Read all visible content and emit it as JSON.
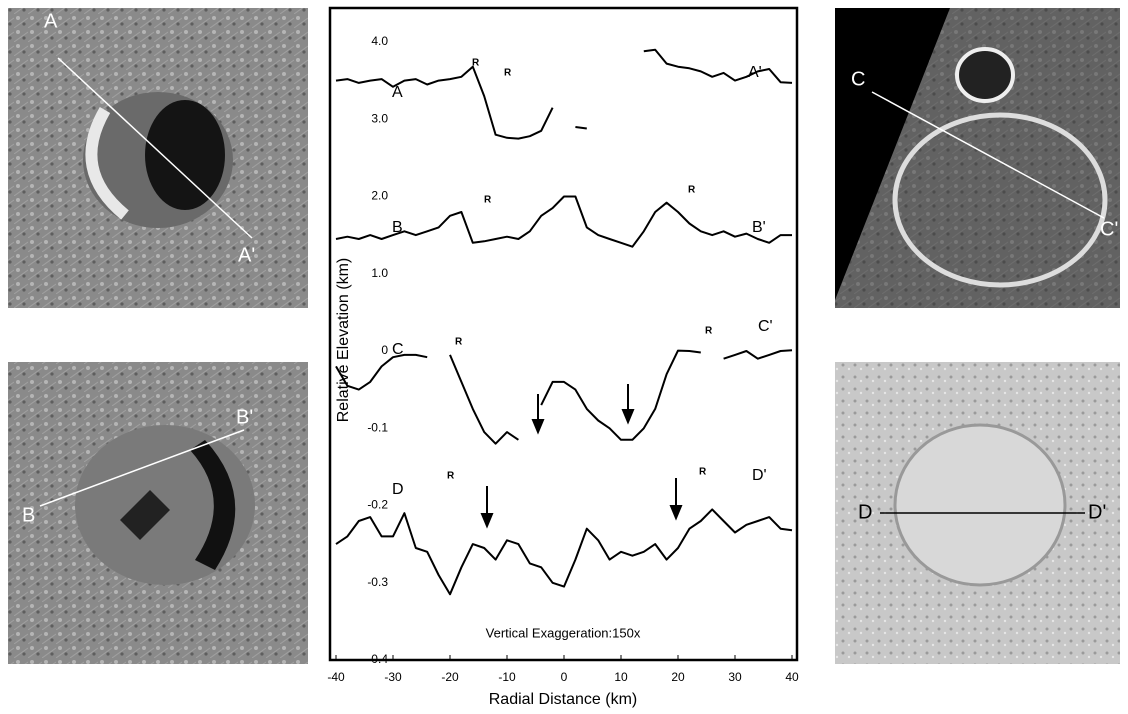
{
  "chart_data": {
    "type": "line",
    "xlabel": "Radial Distance (km)",
    "ylabel": "Relative Elevation (km)",
    "xlim": [
      -40,
      40
    ],
    "xticks": [
      -40,
      -30,
      -20,
      -10,
      0,
      10,
      20,
      30,
      40
    ],
    "ylim": [
      -0.4,
      4.44
    ],
    "yticks": [
      {
        "value": 4.0,
        "label": "4.0"
      },
      {
        "value": 3.0,
        "label": "3.0"
      },
      {
        "value": 2.0,
        "label": "2.0"
      },
      {
        "value": 1.0,
        "label": "1.0"
      },
      0,
      -0.1,
      -0.2,
      -0.3,
      -0.4
    ],
    "annotations": [
      "A",
      "A'",
      "R",
      "R",
      "B",
      "B'",
      "R",
      "R",
      "C",
      "C'",
      "R",
      "R",
      "D",
      "D'",
      "R",
      "R",
      "Vertical Exaggeration:150x"
    ],
    "x": [
      -40,
      -38,
      -36,
      -34,
      -32,
      -30,
      -28,
      -26,
      -24,
      -22,
      -20,
      -18,
      -16,
      -14,
      -12,
      -10,
      -8,
      -6,
      -4,
      -2,
      0,
      2,
      4,
      6,
      8,
      10,
      12,
      14,
      16,
      18,
      20,
      22,
      24,
      26,
      28,
      30,
      32,
      34,
      36,
      38,
      40
    ],
    "series": [
      {
        "color": "#000000",
        "values": [
          3.5,
          3.52,
          3.47,
          3.5,
          3.52,
          3.42,
          3.5,
          3.52,
          3.45,
          3.5,
          3.52,
          3.55,
          3.68,
          3.3,
          2.8,
          2.76,
          2.75,
          2.78,
          2.85,
          3.15,
          null,
          2.9,
          2.88,
          null,
          null,
          null,
          null,
          3.88,
          3.9,
          3.72,
          3.68,
          3.66,
          3.62,
          3.55,
          3.6,
          3.5,
          3.55,
          3.62,
          3.65,
          3.48,
          3.47
        ]
      },
      {
        "color": "#000000",
        "values": [
          1.45,
          1.48,
          1.45,
          1.5,
          1.45,
          1.5,
          1.55,
          1.5,
          1.55,
          1.6,
          1.75,
          1.8,
          1.4,
          1.42,
          1.45,
          1.48,
          1.45,
          1.55,
          1.75,
          1.85,
          2.0,
          2.0,
          1.6,
          1.5,
          1.45,
          1.4,
          1.35,
          1.55,
          1.8,
          1.92,
          1.8,
          1.65,
          1.55,
          1.5,
          1.55,
          1.48,
          1.52,
          1.45,
          1.4,
          1.5,
          1.5
        ]
      },
      {
        "color": "#000000",
        "values": [
          -0.02,
          -0.045,
          -0.05,
          -0.04,
          -0.02,
          -0.008,
          -0.005,
          -0.005,
          -0.008,
          null,
          -0.005,
          -0.04,
          -0.075,
          -0.105,
          -0.12,
          -0.105,
          -0.115,
          null,
          -0.07,
          -0.04,
          -0.04,
          -0.05,
          -0.075,
          -0.09,
          -0.1,
          -0.115,
          -0.115,
          -0.1,
          -0.075,
          -0.03,
          0.005,
          0.0,
          -0.002,
          null,
          -0.01,
          -0.005,
          0.0,
          -0.01,
          -0.005,
          0.0,
          0.01
        ]
      },
      {
        "color": "#000000",
        "values": [
          -0.25,
          -0.24,
          -0.22,
          -0.215,
          -0.24,
          -0.24,
          -0.21,
          -0.255,
          -0.26,
          -0.29,
          -0.315,
          -0.28,
          -0.25,
          -0.255,
          -0.27,
          -0.245,
          -0.25,
          -0.275,
          -0.28,
          -0.3,
          -0.305,
          -0.27,
          -0.23,
          -0.245,
          -0.27,
          -0.26,
          -0.265,
          -0.26,
          -0.25,
          -0.27,
          -0.255,
          -0.23,
          -0.22,
          -0.205,
          -0.22,
          -0.235,
          -0.225,
          -0.22,
          -0.215,
          -0.23,
          -0.232
        ]
      }
    ]
  },
  "panels": [
    {
      "labels": [
        "A",
        "A'"
      ]
    },
    {
      "labels": [
        "B'",
        "B"
      ]
    },
    {
      "labels": [
        "C",
        "C'"
      ]
    },
    {
      "labels": [
        "D",
        "D'"
      ]
    }
  ]
}
